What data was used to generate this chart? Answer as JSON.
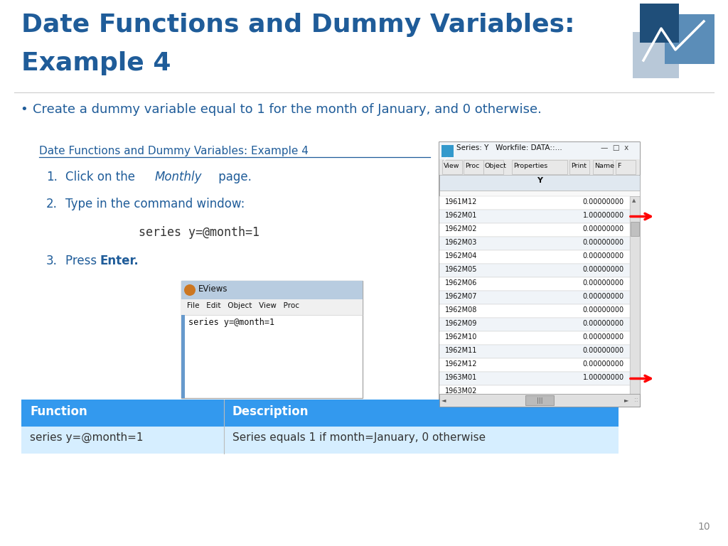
{
  "title_line1": "Date Functions and Dummy Variables:",
  "title_line2": "Example 4",
  "title_color": "#1F5C99",
  "bullet_text": "Create a dummy variable equal to 1 for the month of January, and 0 otherwise.",
  "bullet_color": "#1F5C99",
  "subtitle_link": "Date Functions and Dummy Variables: Example 4",
  "subtitle_color": "#1F5C99",
  "command_text": "series y=@month=1",
  "command_color": "#333333",
  "step_color": "#1F5C99",
  "eviews_title": "EViews",
  "eviews_menu": "File   Edit   Object   View   Proc",
  "eviews_command": "series y=@month=1",
  "table_header": [
    "Function",
    "Description"
  ],
  "table_header_bg": "#3399EE",
  "table_header_color": "#FFFFFF",
  "table_row": [
    "series y=@month=1",
    "Series equals 1 if month=January, 0 otherwise"
  ],
  "table_row_bg": "#D6EEFF",
  "table_row_color": "#333333",
  "series_window_title": "Series: Y   Workfile: DATA::...",
  "series_data": [
    [
      "1961M12",
      "0.00000000"
    ],
    [
      "1962M01",
      "1.00000000"
    ],
    [
      "1962M02",
      "0.00000000"
    ],
    [
      "1962M03",
      "0.00000000"
    ],
    [
      "1962M04",
      "0.00000000"
    ],
    [
      "1962M05",
      "0.00000000"
    ],
    [
      "1962M06",
      "0.00000000"
    ],
    [
      "1962M07",
      "0.00000000"
    ],
    [
      "1962M08",
      "0.00000000"
    ],
    [
      "1962M09",
      "0.00000000"
    ],
    [
      "1962M10",
      "0.00000000"
    ],
    [
      "1962M11",
      "0.00000000"
    ],
    [
      "1962M12",
      "0.00000000"
    ],
    [
      "1963M01",
      "1.00000000"
    ],
    [
      "1963M02",
      ""
    ]
  ],
  "arrow_rows": [
    1,
    13
  ],
  "page_number": "10",
  "bg_color": "#FFFFFF",
  "title_fontsize": 26,
  "bullet_fontsize": 13,
  "step_fontsize": 12
}
